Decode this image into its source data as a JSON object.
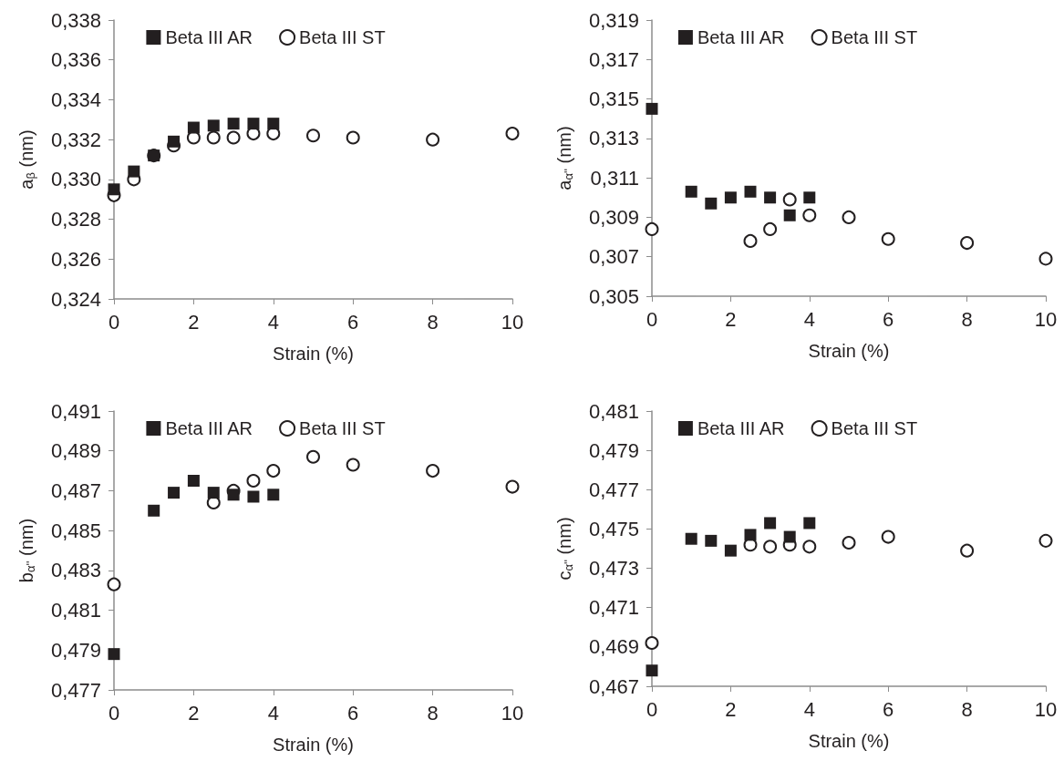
{
  "chart_data": [
    {
      "type": "scatter",
      "xlabel": "Strain (%)",
      "ylabel": "a$_{β}$ (nm)",
      "xlim": [
        0,
        10
      ],
      "xticks": [
        0,
        2,
        4,
        6,
        8,
        10
      ],
      "ylim": [
        0.324,
        0.338
      ],
      "yticks": [
        {
          "value": 0.324,
          "label": "0,324"
        },
        {
          "value": 0.326,
          "label": "0,326"
        },
        {
          "value": 0.328,
          "label": "0,328"
        },
        {
          "value": 0.33,
          "label": "0,330"
        },
        {
          "value": 0.332,
          "label": "0,332"
        },
        {
          "value": 0.334,
          "label": "0,334"
        },
        {
          "value": 0.336,
          "label": "0,336"
        },
        {
          "value": 0.338,
          "label": "0,338"
        }
      ],
      "grid": false,
      "legend": "top",
      "series": [
        {
          "name": "Beta III AR",
          "color": "#231f20",
          "marker": "square",
          "x": [
            0,
            0.5,
            1,
            1.5,
            2,
            2.5,
            3,
            3.5,
            4
          ],
          "values": [
            0.3295,
            0.3304,
            0.3312,
            0.3319,
            0.3326,
            0.3327,
            0.3328,
            0.3328,
            0.3328
          ]
        },
        {
          "name": "Beta III ST",
          "color": "#231f20",
          "marker": "circle",
          "x": [
            0,
            0.5,
            1,
            1.5,
            2,
            2.5,
            3,
            3.5,
            4,
            5,
            6,
            8,
            10
          ],
          "values": [
            0.3292,
            0.33,
            0.3312,
            0.3317,
            0.3321,
            0.3321,
            0.3321,
            0.3323,
            0.3323,
            0.3322,
            0.3321,
            0.332,
            0.3323
          ]
        }
      ]
    },
    {
      "type": "scatter",
      "xlabel": "Strain (%)",
      "ylabel": "a$_{α''}$ (nm)",
      "xlim": [
        0,
        10
      ],
      "xticks": [
        0,
        2,
        4,
        6,
        8,
        10
      ],
      "ylim": [
        0.305,
        0.319
      ],
      "yticks": [
        {
          "value": 0.305,
          "label": "0,305"
        },
        {
          "value": 0.307,
          "label": "0,307"
        },
        {
          "value": 0.309,
          "label": "0,309"
        },
        {
          "value": 0.311,
          "label": "0,311"
        },
        {
          "value": 0.313,
          "label": "0,313"
        },
        {
          "value": 0.315,
          "label": "0,315"
        },
        {
          "value": 0.317,
          "label": "0,317"
        },
        {
          "value": 0.319,
          "label": "0,319"
        }
      ],
      "grid": false,
      "legend": "top",
      "series": [
        {
          "name": "Beta III AR",
          "color": "#231f20",
          "marker": "square",
          "x": [
            0,
            1,
            1.5,
            2,
            2.5,
            3,
            3.5,
            4
          ],
          "values": [
            0.3145,
            0.3103,
            0.3097,
            0.31,
            0.3103,
            0.31,
            0.3091,
            0.31
          ]
        },
        {
          "name": "Beta III ST",
          "color": "#231f20",
          "marker": "circle",
          "x": [
            0,
            2.5,
            3,
            3.5,
            4,
            5,
            6,
            8,
            10
          ],
          "values": [
            0.3084,
            0.3078,
            0.3084,
            0.3099,
            0.3091,
            0.309,
            0.3079,
            0.3077,
            0.3069
          ]
        }
      ]
    },
    {
      "type": "scatter",
      "xlabel": "Strain (%)",
      "ylabel": "b$_{α''}$ (nm)",
      "xlim": [
        0,
        10
      ],
      "xticks": [
        0,
        2,
        4,
        6,
        8,
        10
      ],
      "ylim": [
        0.477,
        0.491
      ],
      "yticks": [
        {
          "value": 0.477,
          "label": "0,477"
        },
        {
          "value": 0.479,
          "label": "0,479"
        },
        {
          "value": 0.481,
          "label": "0,481"
        },
        {
          "value": 0.483,
          "label": "0,483"
        },
        {
          "value": 0.485,
          "label": "0,485"
        },
        {
          "value": 0.487,
          "label": "0,487"
        },
        {
          "value": 0.489,
          "label": "0,489"
        },
        {
          "value": 0.491,
          "label": "0,491"
        }
      ],
      "grid": false,
      "legend": "top",
      "series": [
        {
          "name": "Beta III AR",
          "color": "#231f20",
          "marker": "square",
          "x": [
            0,
            1,
            1.5,
            2,
            2.5,
            3,
            3.5,
            4
          ],
          "values": [
            0.4788,
            0.486,
            0.4869,
            0.4875,
            0.4869,
            0.4868,
            0.4867,
            0.4868
          ]
        },
        {
          "name": "Beta III ST",
          "color": "#231f20",
          "marker": "circle",
          "x": [
            0,
            2.5,
            3,
            3.5,
            4,
            5,
            6,
            8,
            10
          ],
          "values": [
            0.4823,
            0.4864,
            0.487,
            0.4875,
            0.488,
            0.4887,
            0.4883,
            0.488,
            0.4872
          ]
        }
      ]
    },
    {
      "type": "scatter",
      "xlabel": "Strain (%)",
      "ylabel": "c$_{α''}$ (nm)",
      "xlim": [
        0,
        10
      ],
      "xticks": [
        0,
        2,
        4,
        6,
        8,
        10
      ],
      "ylim": [
        0.467,
        0.481
      ],
      "yticks": [
        {
          "value": 0.467,
          "label": "0,467"
        },
        {
          "value": 0.469,
          "label": "0,469"
        },
        {
          "value": 0.471,
          "label": "0,471"
        },
        {
          "value": 0.473,
          "label": "0,473"
        },
        {
          "value": 0.475,
          "label": "0,475"
        },
        {
          "value": 0.477,
          "label": "0,477"
        },
        {
          "value": 0.479,
          "label": "0,479"
        },
        {
          "value": 0.481,
          "label": "0,481"
        }
      ],
      "grid": false,
      "legend": "top",
      "series": [
        {
          "name": "Beta III AR",
          "color": "#231f20",
          "marker": "square",
          "x": [
            0,
            1,
            1.5,
            2,
            2.5,
            3,
            3.5,
            4
          ],
          "values": [
            0.4678,
            0.4745,
            0.4744,
            0.4739,
            0.4747,
            0.4753,
            0.4746,
            0.4753
          ]
        },
        {
          "name": "Beta III ST",
          "color": "#231f20",
          "marker": "circle",
          "x": [
            0,
            2.5,
            3,
            3.5,
            4,
            5,
            6,
            8,
            10
          ],
          "values": [
            0.4692,
            0.4742,
            0.4741,
            0.4742,
            0.4741,
            0.4743,
            0.4746,
            0.4739,
            0.4744
          ]
        }
      ]
    }
  ]
}
